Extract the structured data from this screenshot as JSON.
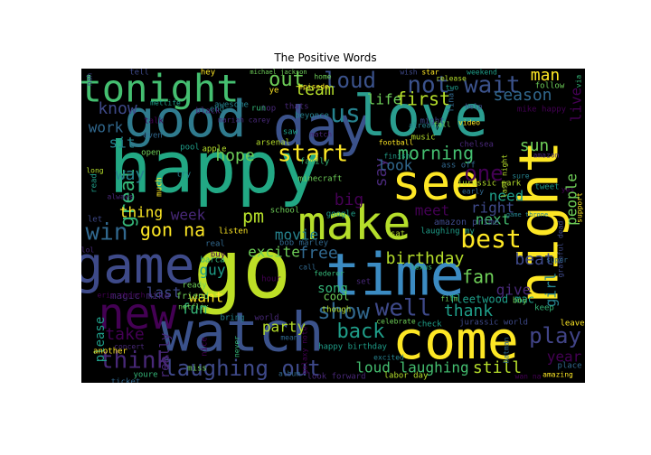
{
  "figure": {
    "title": "The Positive Words"
  },
  "colors": {
    "background": "#000000",
    "palette": "viridis"
  },
  "words": [
    {
      "text": "happy"
    },
    {
      "text": "go"
    },
    {
      "text": "day"
    },
    {
      "text": "love"
    },
    {
      "text": "good"
    },
    {
      "text": "night"
    },
    {
      "text": "time"
    },
    {
      "text": "watch"
    },
    {
      "text": "make"
    },
    {
      "text": "come"
    },
    {
      "text": "game"
    },
    {
      "text": "see"
    },
    {
      "text": "tonight"
    },
    {
      "text": "new"
    },
    {
      "text": "laughing out"
    },
    {
      "text": "think"
    },
    {
      "text": "not wait"
    },
    {
      "text": "show"
    },
    {
      "text": "well"
    },
    {
      "text": "back"
    },
    {
      "text": "play"
    },
    {
      "text": "win"
    },
    {
      "text": "great"
    },
    {
      "text": "best"
    },
    {
      "text": "loud"
    },
    {
      "text": "out"
    },
    {
      "text": "take"
    },
    {
      "text": "gon na"
    },
    {
      "text": "us"
    },
    {
      "text": "start"
    },
    {
      "text": "morning"
    },
    {
      "text": "work"
    },
    {
      "text": "know"
    },
    {
      "text": "life"
    },
    {
      "text": "first"
    },
    {
      "text": "season"
    },
    {
      "text": "next"
    },
    {
      "text": "sun"
    },
    {
      "text": "one"
    },
    {
      "text": "loud laughing"
    },
    {
      "text": "still"
    },
    {
      "text": "thank"
    },
    {
      "text": "live"
    },
    {
      "text": "man"
    },
    {
      "text": "pm"
    },
    {
      "text": "week"
    },
    {
      "text": "big"
    },
    {
      "text": "need"
    },
    {
      "text": "right"
    },
    {
      "text": "say"
    },
    {
      "text": "birthday"
    },
    {
      "text": "fan"
    },
    {
      "text": "beat"
    },
    {
      "text": "excite"
    },
    {
      "text": "movie"
    },
    {
      "text": "free"
    },
    {
      "text": "party"
    },
    {
      "text": "hope"
    },
    {
      "text": "way"
    },
    {
      "text": "thing"
    },
    {
      "text": "team"
    },
    {
      "text": "look"
    },
    {
      "text": "meet"
    },
    {
      "text": "people"
    },
    {
      "text": "girl"
    },
    {
      "text": "give"
    },
    {
      "text": "song"
    },
    {
      "text": "guy"
    },
    {
      "text": "last"
    },
    {
      "text": "want"
    },
    {
      "text": "fun"
    },
    {
      "text": "really"
    },
    {
      "text": "year"
    },
    {
      "text": "please"
    },
    {
      "text": "sit"
    },
    {
      "text": "cool"
    },
    {
      "text": "amazon prime"
    },
    {
      "text": "jurassic park"
    },
    {
      "text": "happy birthday"
    },
    {
      "text": "fleetwood mac"
    },
    {
      "text": "magic mike"
    },
    {
      "text": "friend"
    },
    {
      "text": "bob marley"
    },
    {
      "text": "mike happy"
    },
    {
      "text": "minecraft"
    },
    {
      "text": "beyonce"
    },
    {
      "text": "chelsea"
    },
    {
      "text": "arsenal"
    },
    {
      "text": "google"
    },
    {
      "text": "mariah carey"
    },
    {
      "text": "michael jackson"
    },
    {
      "text": "weekend"
    },
    {
      "text": "wish"
    },
    {
      "text": "star"
    },
    {
      "text": "follow"
    },
    {
      "text": "awesome"
    },
    {
      "text": "thats"
    },
    {
      "text": "music"
    },
    {
      "text": "saw"
    },
    {
      "text": "match"
    },
    {
      "text": "listen"
    },
    {
      "text": "barca"
    },
    {
      "text": "real"
    },
    {
      "text": "buy"
    },
    {
      "text": "ready"
    },
    {
      "text": "bring"
    },
    {
      "text": "world"
    },
    {
      "text": "celebrate"
    },
    {
      "text": "check"
    },
    {
      "text": "jurassic world"
    },
    {
      "text": "leave"
    },
    {
      "text": "keep"
    },
    {
      "text": "place"
    },
    {
      "text": "amazing"
    },
    {
      "text": "miss"
    },
    {
      "text": "album"
    },
    {
      "text": "look forward"
    },
    {
      "text": "labor day"
    },
    {
      "text": "excited"
    },
    {
      "text": "concert"
    },
    {
      "text": "another"
    },
    {
      "text": "youre"
    },
    {
      "text": "ticket"
    },
    {
      "text": "nice"
    },
    {
      "text": "never"
    },
    {
      "text": "mean"
    },
    {
      "text": "galaxy note"
    },
    {
      "text": "though"
    },
    {
      "text": "tweet"
    },
    {
      "text": "amazon"
    },
    {
      "text": "last night"
    },
    {
      "text": "game throne"
    },
    {
      "text": "grateful dead"
    },
    {
      "text": "support"
    },
    {
      "text": "boy"
    },
    {
      "text": "batman"
    },
    {
      "text": "wan na"
    },
    {
      "text": "sat"
    },
    {
      "text": "laughing my"
    },
    {
      "text": "tell"
    },
    {
      "text": "hey"
    },
    {
      "text": "metlife"
    },
    {
      "text": "even"
    },
    {
      "text": "talk"
    },
    {
      "text": "open"
    },
    {
      "text": "end"
    },
    {
      "text": "top"
    },
    {
      "text": "home"
    },
    {
      "text": "already"
    },
    {
      "text": "might"
    },
    {
      "text": "release"
    },
    {
      "text": "two"
    },
    {
      "text": "help"
    },
    {
      "text": "episode"
    },
    {
      "text": "school"
    },
    {
      "text": "try"
    },
    {
      "text": "eric church"
    },
    {
      "text": "netflix"
    },
    {
      "text": "read"
    },
    {
      "text": "let"
    },
    {
      "text": "much"
    },
    {
      "text": "family"
    },
    {
      "text": "ass off"
    },
    {
      "text": "football"
    },
    {
      "text": "lexus"
    },
    {
      "text": "early"
    },
    {
      "text": "black"
    },
    {
      "text": "apple"
    },
    {
      "text": "pool"
    },
    {
      "text": "always"
    },
    {
      "text": "long"
    },
    {
      "text": "finish"
    },
    {
      "text": "final"
    },
    {
      "text": "video"
    },
    {
      "text": "federer"
    },
    {
      "text": "call"
    },
    {
      "text": "set"
    },
    {
      "text": "fall"
    },
    {
      "text": "sure"
    },
    {
      "text": "lol"
    },
    {
      "text": "ye"
    },
    {
      "text": "run"
    },
    {
      "text": "nah"
    },
    {
      "text": "hour"
    },
    {
      "text": "via"
    },
    {
      "text": "super"
    },
    {
      "text": "yes"
    },
    {
      "text": "film"
    }
  ]
}
